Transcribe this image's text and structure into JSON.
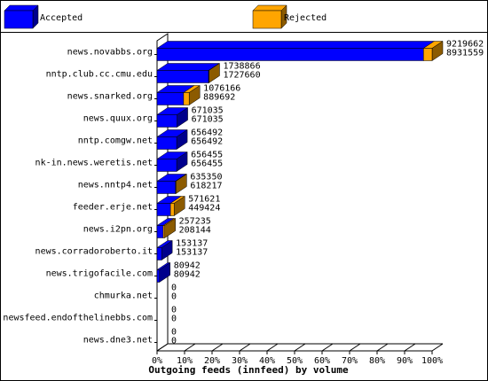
{
  "chart_data": {
    "type": "bar",
    "orientation": "horizontal",
    "title": "Outgoing feeds (innfeed) by volume",
    "categories": [
      "news.novabbs.org",
      "nntp.club.cc.cmu.edu",
      "news.snarked.org",
      "news.quux.org",
      "nntp.comgw.net",
      "nk-in.news.weretis.net",
      "news.nntp4.net",
      "feeder.erje.net",
      "news.i2pn.org",
      "news.corradoroberto.it",
      "news.trigofacile.com",
      "chmurka.net",
      "newsfeed.endofthelinebbs.com",
      "news.dne3.net"
    ],
    "offered": [
      9219662,
      1738866,
      1076166,
      671035,
      656492,
      656455,
      635350,
      571621,
      257235,
      153137,
      80942,
      0,
      0,
      0
    ],
    "series": [
      {
        "name": "Accepted",
        "color": "#0000ff",
        "values": [
          8931559,
          1727660,
          889692,
          671035,
          656492,
          656455,
          618217,
          449424,
          208144,
          153137,
          80942,
          0,
          0,
          0
        ]
      },
      {
        "name": "Rejected",
        "color": "#ffa500"
      }
    ],
    "xlim": [
      0,
      9219662
    ],
    "xticks": [
      {
        "value": 0,
        "label": "0%"
      },
      {
        "value": 921966.2,
        "label": "10%"
      },
      {
        "value": 1843932.4,
        "label": "20%"
      },
      {
        "value": 2765898.6,
        "label": "30%"
      },
      {
        "value": 3687864.8,
        "label": "40%"
      },
      {
        "value": 4609831,
        "label": "50%"
      },
      {
        "value": 5531797.2,
        "label": "60%"
      },
      {
        "value": 6453763.4,
        "label": "70%"
      },
      {
        "value": 7375729.6,
        "label": "80%"
      },
      {
        "value": 8297695.8,
        "label": "90%"
      },
      {
        "value": 9219662,
        "label": "100%"
      }
    ]
  }
}
